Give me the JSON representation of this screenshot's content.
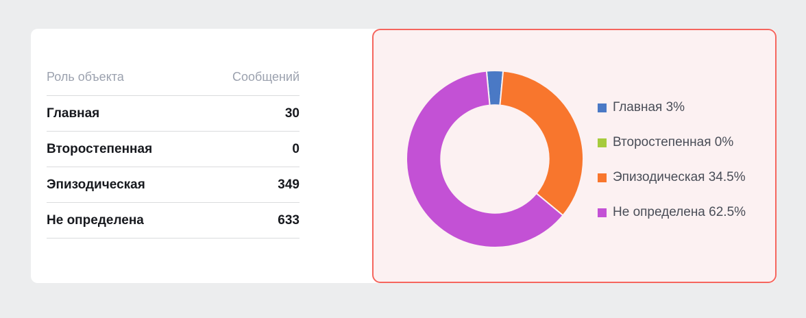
{
  "page": {
    "background": "#ecedee",
    "card_background": "#ffffff"
  },
  "table": {
    "headers": [
      "Роль объекта",
      "Сообщений"
    ],
    "rows": [
      {
        "label": "Главная",
        "value": "30"
      },
      {
        "label": "Второстепенная",
        "value": "0"
      },
      {
        "label": "Эпизодическая",
        "value": "349"
      },
      {
        "label": "Не определена",
        "value": "633"
      }
    ]
  },
  "chart_panel": {
    "background": "#fcf1f2",
    "border_color": "#f5655d"
  },
  "chart_data": {
    "type": "pie",
    "title": "",
    "categories": [
      "Главная",
      "Второстепенная",
      "Эпизодическая",
      "Не определена"
    ],
    "values": [
      3,
      0,
      34.5,
      62.5
    ],
    "counts": [
      30,
      0,
      349,
      633
    ],
    "colors": [
      "#4a79c5",
      "#a6cb3d",
      "#f8762d",
      "#c351d5"
    ],
    "legend": [
      "Главная 3%",
      "Второстепенная 0%",
      "Эпизодическая 34.5%",
      "Не определена 62.5%"
    ],
    "legend_position": "right",
    "donut_hole_ratio": 0.61,
    "start_angle_offset_deg": -5.4,
    "slice_gap_color": "#fcf1f2"
  }
}
